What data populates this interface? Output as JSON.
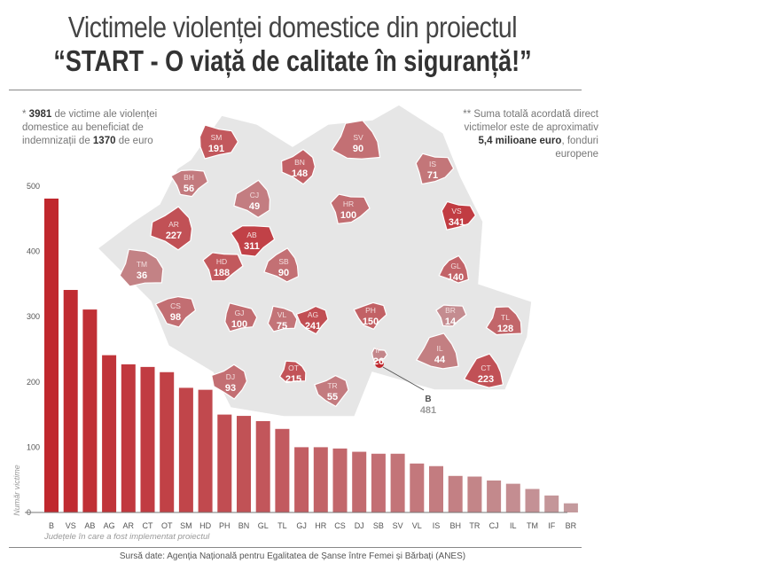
{
  "title": {
    "line1": "Victimele violenței domestice din proiectul",
    "line2": "“START - O viață de calitate în siguranță!”"
  },
  "note_left": {
    "prefix": "* ",
    "victims": "3981",
    "text1": " de victime ale violenței domestice au beneficiat de indemnizații de ",
    "amount": "1370",
    "text2": " de euro"
  },
  "note_right": {
    "text1": "** Suma totală acordată direct victimelor este de aproximativ ",
    "amount": "5,4 milioane euro",
    "text2": ", fonduri europene"
  },
  "source": "Sursă date: Agenția Națională pentru Egalitatea de Șanse între Femei și Bărbați (ANES)",
  "colors": {
    "high": "#c0272d",
    "low": "#c49a9d",
    "map_bg": "#e6e6e6"
  },
  "chart_data": {
    "type": "bar",
    "title": "Victimele violenței domestice din proiectul “START - O viață de calitate în siguranță!”",
    "xlabel": "Județele în care a fost implementat proiectul",
    "ylabel": "Număr victime",
    "ylim": [
      0,
      500
    ],
    "yticks": [
      0,
      100,
      200,
      300,
      400,
      500
    ],
    "categories": [
      "B",
      "VS",
      "AB",
      "AG",
      "AR",
      "CT",
      "OT",
      "SM",
      "HD",
      "PH",
      "BN",
      "GL",
      "TL",
      "GJ",
      "HR",
      "CS",
      "DJ",
      "SB",
      "SV",
      "VL",
      "IS",
      "BH",
      "TR",
      "CJ",
      "IL",
      "TM",
      "IF",
      "BR"
    ],
    "values": [
      481,
      341,
      311,
      241,
      227,
      223,
      215,
      191,
      188,
      150,
      148,
      140,
      128,
      100,
      100,
      98,
      93,
      90,
      90,
      75,
      71,
      56,
      55,
      49,
      44,
      36,
      26,
      14
    ]
  }
}
